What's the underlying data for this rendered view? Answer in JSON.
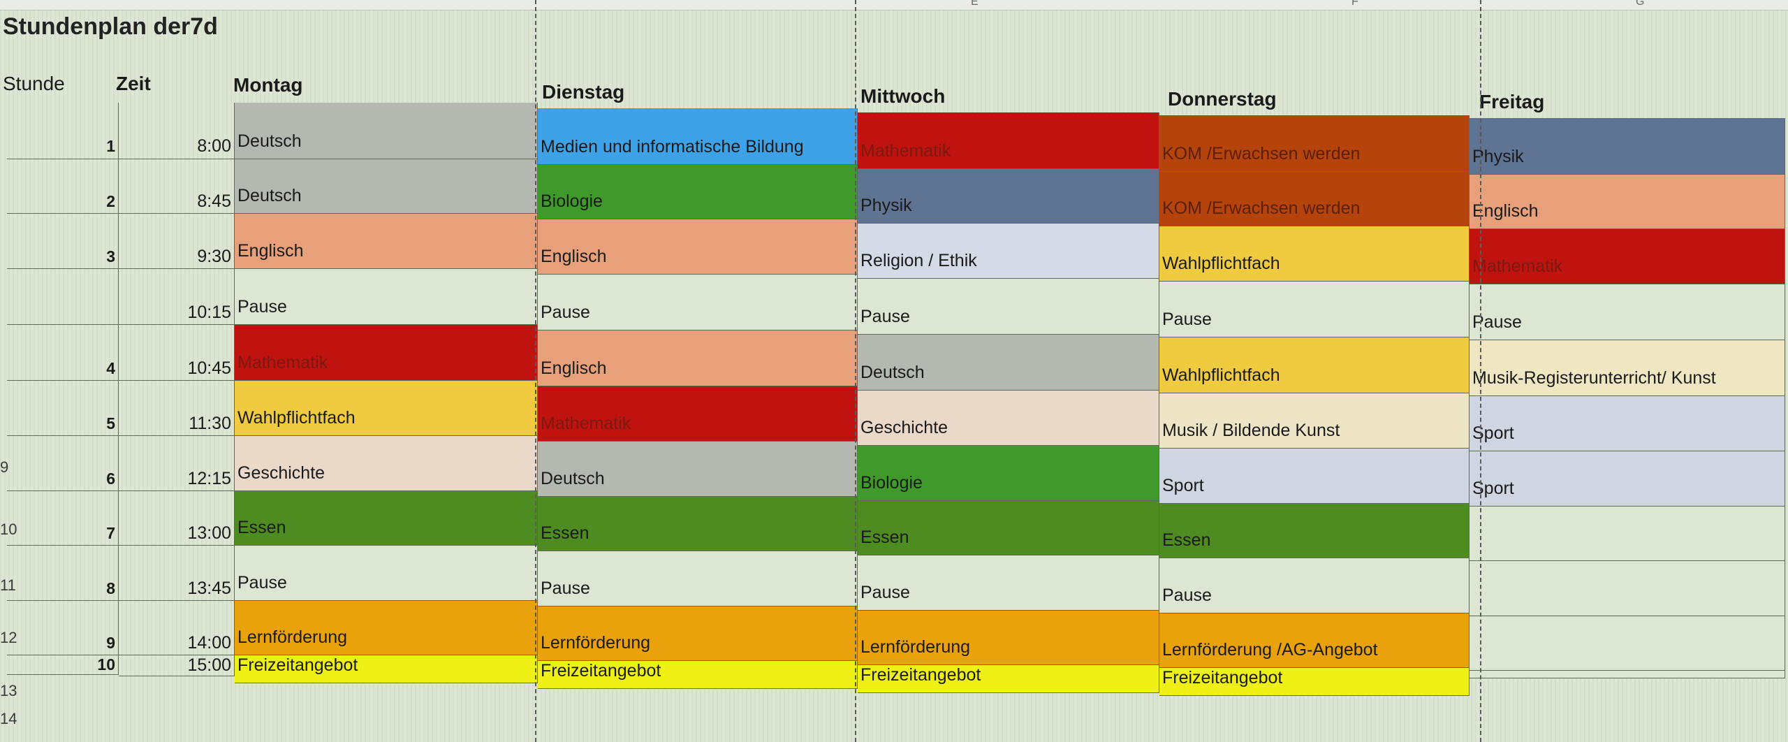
{
  "sheet": {
    "title": "Stundenplan der7d",
    "column_letters": [
      "E",
      "F",
      "G"
    ],
    "row_numbers": [
      "9",
      "10",
      "11",
      "12",
      "13",
      "14"
    ],
    "headers": {
      "stunde": "Stunde",
      "zeit": "Zeit",
      "days": [
        "Montag",
        "Dienstag",
        "Mittwoch",
        "Donnerstag",
        "Freitag"
      ]
    },
    "colors": {
      "deutsch": "#b5b7b1",
      "medien": "#3ea2e8",
      "mathematik": "#c0130f",
      "kom": "#b4430c",
      "physik": "#5f7393",
      "biologie": "#3f9a2b",
      "englisch": "#e7a07a",
      "religion": "#d4dbe6",
      "wahlpflicht": "#f0ca3f",
      "pause": "#dde6d3",
      "geschichte": "#ead8c8",
      "musik_freitag": "#efe7c2",
      "musik_bk": "#ede5c5",
      "sport": "#cfd6e2",
      "essen": "#4e8c22",
      "lernfoerderung": "#e9a20b",
      "freizeit": "#eff015"
    },
    "rows": [
      {
        "stunde": "1",
        "zeit": "8:00",
        "cells": [
          {
            "text": "Deutsch",
            "color": "deutsch"
          },
          {
            "text": "Medien und informatische Bildung",
            "color": "medien"
          },
          {
            "text": "Mathematik",
            "color": "mathematik"
          },
          {
            "text": "KOM /Erwachsen werden",
            "color": "kom"
          },
          {
            "text": "Physik",
            "color": "physik"
          }
        ]
      },
      {
        "stunde": "2",
        "zeit": "8:45",
        "cells": [
          {
            "text": "Deutsch",
            "color": "deutsch"
          },
          {
            "text": "Biologie",
            "color": "biologie"
          },
          {
            "text": "Physik",
            "color": "physik"
          },
          {
            "text": "KOM /Erwachsen werden",
            "color": "kom"
          },
          {
            "text": "Englisch",
            "color": "englisch"
          }
        ]
      },
      {
        "stunde": "3",
        "zeit": "9:30",
        "cells": [
          {
            "text": "Englisch",
            "color": "englisch"
          },
          {
            "text": "Englisch",
            "color": "englisch"
          },
          {
            "text": "Religion / Ethik",
            "color": "religion"
          },
          {
            "text": "Wahlpflichtfach",
            "color": "wahlpflicht"
          },
          {
            "text": "Mathematik",
            "color": "mathematik"
          }
        ]
      },
      {
        "stunde": "",
        "zeit": "10:15",
        "cells": [
          {
            "text": "Pause",
            "color": "pause"
          },
          {
            "text": "Pause",
            "color": "pause"
          },
          {
            "text": "Pause",
            "color": "pause"
          },
          {
            "text": "Pause",
            "color": "pause"
          },
          {
            "text": "Pause",
            "color": "pause"
          }
        ]
      },
      {
        "stunde": "4",
        "zeit": "10:45",
        "cells": [
          {
            "text": "Mathematik",
            "color": "mathematik"
          },
          {
            "text": "Englisch",
            "color": "englisch"
          },
          {
            "text": "Deutsch",
            "color": "deutsch"
          },
          {
            "text": "Wahlpflichtfach",
            "color": "wahlpflicht"
          },
          {
            "text": "Musik-Registerunterricht/ Kunst",
            "color": "musik_freitag"
          }
        ]
      },
      {
        "stunde": "5",
        "zeit": "11:30",
        "cells": [
          {
            "text": "Wahlpflichtfach",
            "color": "wahlpflicht"
          },
          {
            "text": "Mathematik",
            "color": "mathematik"
          },
          {
            "text": "Geschichte",
            "color": "geschichte"
          },
          {
            "text": "Musik / Bildende Kunst",
            "color": "musik_bk"
          },
          {
            "text": "Sport",
            "color": "sport"
          }
        ]
      },
      {
        "stunde": "6",
        "zeit": "12:15",
        "cells": [
          {
            "text": "Geschichte",
            "color": "geschichte"
          },
          {
            "text": "Deutsch",
            "color": "deutsch"
          },
          {
            "text": "Biologie",
            "color": "biologie"
          },
          {
            "text": "Sport",
            "color": "sport"
          },
          {
            "text": "Sport",
            "color": "sport"
          }
        ]
      },
      {
        "stunde": "7",
        "zeit": "13:00",
        "cells": [
          {
            "text": "Essen",
            "color": "essen"
          },
          {
            "text": "Essen",
            "color": "essen"
          },
          {
            "text": "Essen",
            "color": "essen"
          },
          {
            "text": "Essen",
            "color": "essen"
          },
          {
            "text": "",
            "color": "pause"
          }
        ]
      },
      {
        "stunde": "8",
        "zeit": "13:45",
        "cells": [
          {
            "text": "Pause",
            "color": "pause"
          },
          {
            "text": "Pause",
            "color": "pause"
          },
          {
            "text": "Pause",
            "color": "pause"
          },
          {
            "text": "Pause",
            "color": "pause"
          },
          {
            "text": "",
            "color": "pause"
          }
        ]
      },
      {
        "stunde": "9",
        "zeit": "14:00",
        "cells": [
          {
            "text": "Lernförderung",
            "color": "lernfoerderung"
          },
          {
            "text": "Lernförderung",
            "color": "lernfoerderung"
          },
          {
            "text": "Lernförderung",
            "color": "lernfoerderung"
          },
          {
            "text": "Lernförderung /AG-Angebot",
            "color": "lernfoerderung"
          },
          {
            "text": "",
            "color": "pause"
          }
        ]
      },
      {
        "stunde": "10",
        "zeit": "15:00",
        "cells": [
          {
            "text": "Freizeitangebot",
            "color": "freizeit"
          },
          {
            "text": "Freizeitangebot",
            "color": "freizeit"
          },
          {
            "text": "Freizeitangebot",
            "color": "freizeit"
          },
          {
            "text": "Freizeitangebot",
            "color": "freizeit"
          },
          {
            "text": "",
            "color": "pause"
          }
        ]
      }
    ]
  }
}
